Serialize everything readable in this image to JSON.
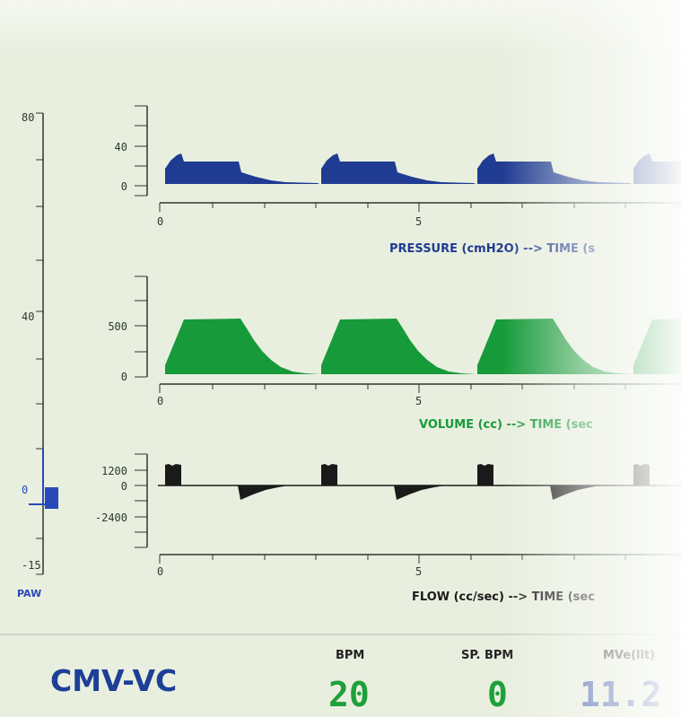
{
  "paw": {
    "label": "PAW",
    "ticks": [
      "80",
      "40",
      "0",
      "-15"
    ],
    "current_value": 0,
    "color": "#2a49b8"
  },
  "charts": [
    {
      "id": "pressure",
      "title": "PRESSURE (cmH2O) --> TIME (s",
      "color": "#1f3b92",
      "y_ticks": [
        "40",
        "0"
      ],
      "x_ticks": [
        "0",
        "5"
      ]
    },
    {
      "id": "volume",
      "title": "VOLUME (cc) --> TIME (sec",
      "color": "#169a3a",
      "y_ticks": [
        "500",
        "0"
      ],
      "x_ticks": [
        "0",
        "5"
      ]
    },
    {
      "id": "flow",
      "title": "FLOW (cc/sec) --> TIME (sec",
      "color": "#1a1a1a",
      "y_ticks": [
        "1200",
        "0",
        "-2400"
      ],
      "x_ticks": [
        "0",
        "5"
      ]
    }
  ],
  "chart_data": [
    {
      "type": "area",
      "title": "PRESSURE (cmH2O) --> TIME (s",
      "ylim": [
        -10,
        60
      ],
      "xlim": [
        0,
        10
      ],
      "x": [
        0.1,
        0.2,
        0.3,
        0.4,
        0.5,
        1.5,
        1.55,
        2.0,
        2.4,
        3.0,
        3.1
      ],
      "y": [
        20,
        29,
        33,
        25,
        25,
        25,
        15,
        10,
        5,
        2,
        2
      ],
      "period_s": 3.0
    },
    {
      "type": "area",
      "title": "VOLUME (cc) --> TIME (sec",
      "ylim": [
        0,
        800
      ],
      "xlim": [
        0,
        10
      ],
      "x": [
        0.1,
        0.5,
        1.5,
        2.0,
        2.5,
        3.0,
        3.1
      ],
      "y": [
        60,
        560,
        560,
        300,
        100,
        20,
        20
      ],
      "period_s": 3.0
    },
    {
      "type": "area",
      "title": "FLOW (cc/sec) --> TIME (sec",
      "ylim": [
        -4800,
        1800
      ],
      "xlim": [
        0,
        10
      ],
      "x": [
        0.1,
        0.4,
        0.45,
        1.5,
        1.6,
        2.0,
        2.3,
        2.6,
        3.1
      ],
      "y": [
        1300,
        1300,
        0,
        0,
        -1100,
        -650,
        -250,
        0,
        0
      ],
      "period_s": 3.0
    }
  ],
  "footer": {
    "mode": "CMV-VC",
    "stats": [
      {
        "label": "BPM",
        "value": "20",
        "color": "#1fa03a"
      },
      {
        "label": "SP. BPM",
        "value": "0",
        "color": "#1fa03a"
      },
      {
        "label": "MVe(lit)",
        "value": "11.2",
        "color": "#2e4aa8"
      }
    ]
  }
}
